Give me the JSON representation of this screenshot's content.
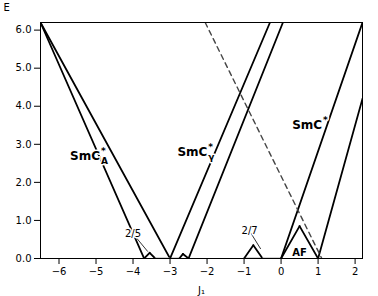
{
  "chart_data": {
    "type": "line",
    "xlabel": "J₁",
    "ylabel": "E",
    "xlim": [
      -6.5,
      2.2
    ],
    "ylim": [
      0,
      6.2
    ],
    "xticks": [
      -6,
      -5,
      -4,
      -3,
      -2,
      -1,
      0,
      1,
      2
    ],
    "yticks": [
      0,
      1,
      2,
      3,
      4,
      5,
      6
    ],
    "grid": false,
    "series": [
      {
        "x": [
          -6.5,
          -3.7
        ],
        "values": [
          6.2,
          0.0
        ],
        "color": "#000000"
      },
      {
        "x": [
          -6.5,
          -3.0
        ],
        "values": [
          6.2,
          0.0
        ],
        "color": "#000000"
      },
      {
        "x": [
          -3.7,
          -3.55
        ],
        "values": [
          0.0,
          0.15
        ],
        "color": "#000000"
      },
      {
        "x": [
          -3.55,
          -3.4
        ],
        "values": [
          0.15,
          0.0
        ],
        "color": "#000000"
      },
      {
        "x": [
          -3.4,
          -3.0
        ],
        "values": [
          0.0,
          0.0
        ],
        "color": "#aaaaaa"
      },
      {
        "x": [
          -3.0,
          -2.75
        ],
        "values": [
          0.0,
          0.0
        ],
        "color": "#aaaaaa"
      },
      {
        "x": [
          -2.75,
          -2.65
        ],
        "values": [
          0.0,
          0.12
        ],
        "color": "#000000"
      },
      {
        "x": [
          -2.65,
          -2.5
        ],
        "values": [
          0.12,
          0.0
        ],
        "color": "#000000"
      },
      {
        "x": [
          -3.0,
          -0.3
        ],
        "values": [
          0.0,
          6.2
        ],
        "color": "#000000"
      },
      {
        "x": [
          -2.5,
          0.05
        ],
        "values": [
          0.0,
          6.2
        ],
        "color": "#000000"
      },
      {
        "x": [
          -1.0,
          -0.5
        ],
        "values": [
          0.0,
          0.0
        ],
        "color": "#aaaaaa"
      },
      {
        "x": [
          -1.0,
          -0.75
        ],
        "values": [
          0.0,
          0.35
        ],
        "color": "#000000"
      },
      {
        "x": [
          -0.75,
          -0.5
        ],
        "values": [
          0.35,
          0.0
        ],
        "color": "#000000"
      },
      {
        "x": [
          -0.5,
          0.0
        ],
        "values": [
          0.0,
          0.0
        ],
        "color": "#aaaaaa"
      },
      {
        "x": [
          0.0,
          0.5
        ],
        "values": [
          0.0,
          0.85
        ],
        "color": "#000000"
      },
      {
        "x": [
          0.5,
          1.0
        ],
        "values": [
          0.85,
          0.0
        ],
        "color": "#000000"
      },
      {
        "x": [
          0.0,
          2.2
        ],
        "values": [
          0.0,
          6.2
        ],
        "color": "#000000"
      },
      {
        "x": [
          1.0,
          2.2
        ],
        "values": [
          0.0,
          4.2
        ],
        "color": "#000000"
      },
      {
        "x": [
          -2.05,
          1.1
        ],
        "values": [
          6.2,
          0.0
        ],
        "color": "#444444",
        "line_style": "dashed"
      }
    ],
    "labels": [
      {
        "text": "SmC",
        "subscript": "A",
        "superscript": "*",
        "x": -5.0,
        "y": 2.7
      },
      {
        "text": "SmC",
        "subscript": "γ",
        "superscript": "*",
        "x": -2.1,
        "y": 2.8
      },
      {
        "text": "SmC",
        "superscript": "*",
        "x": 1.0,
        "y": 3.5
      },
      {
        "text": "AF",
        "x": 0.5,
        "y": 0.15
      }
    ],
    "annotations": [
      {
        "text": "2/5",
        "x": -4.0,
        "y": 0.65,
        "x_end": -3.6,
        "y_end": 0.18
      },
      {
        "text": "2/7",
        "x": -0.85,
        "y": 0.72,
        "x_end": -0.55,
        "y_end": 0.25
      }
    ]
  }
}
